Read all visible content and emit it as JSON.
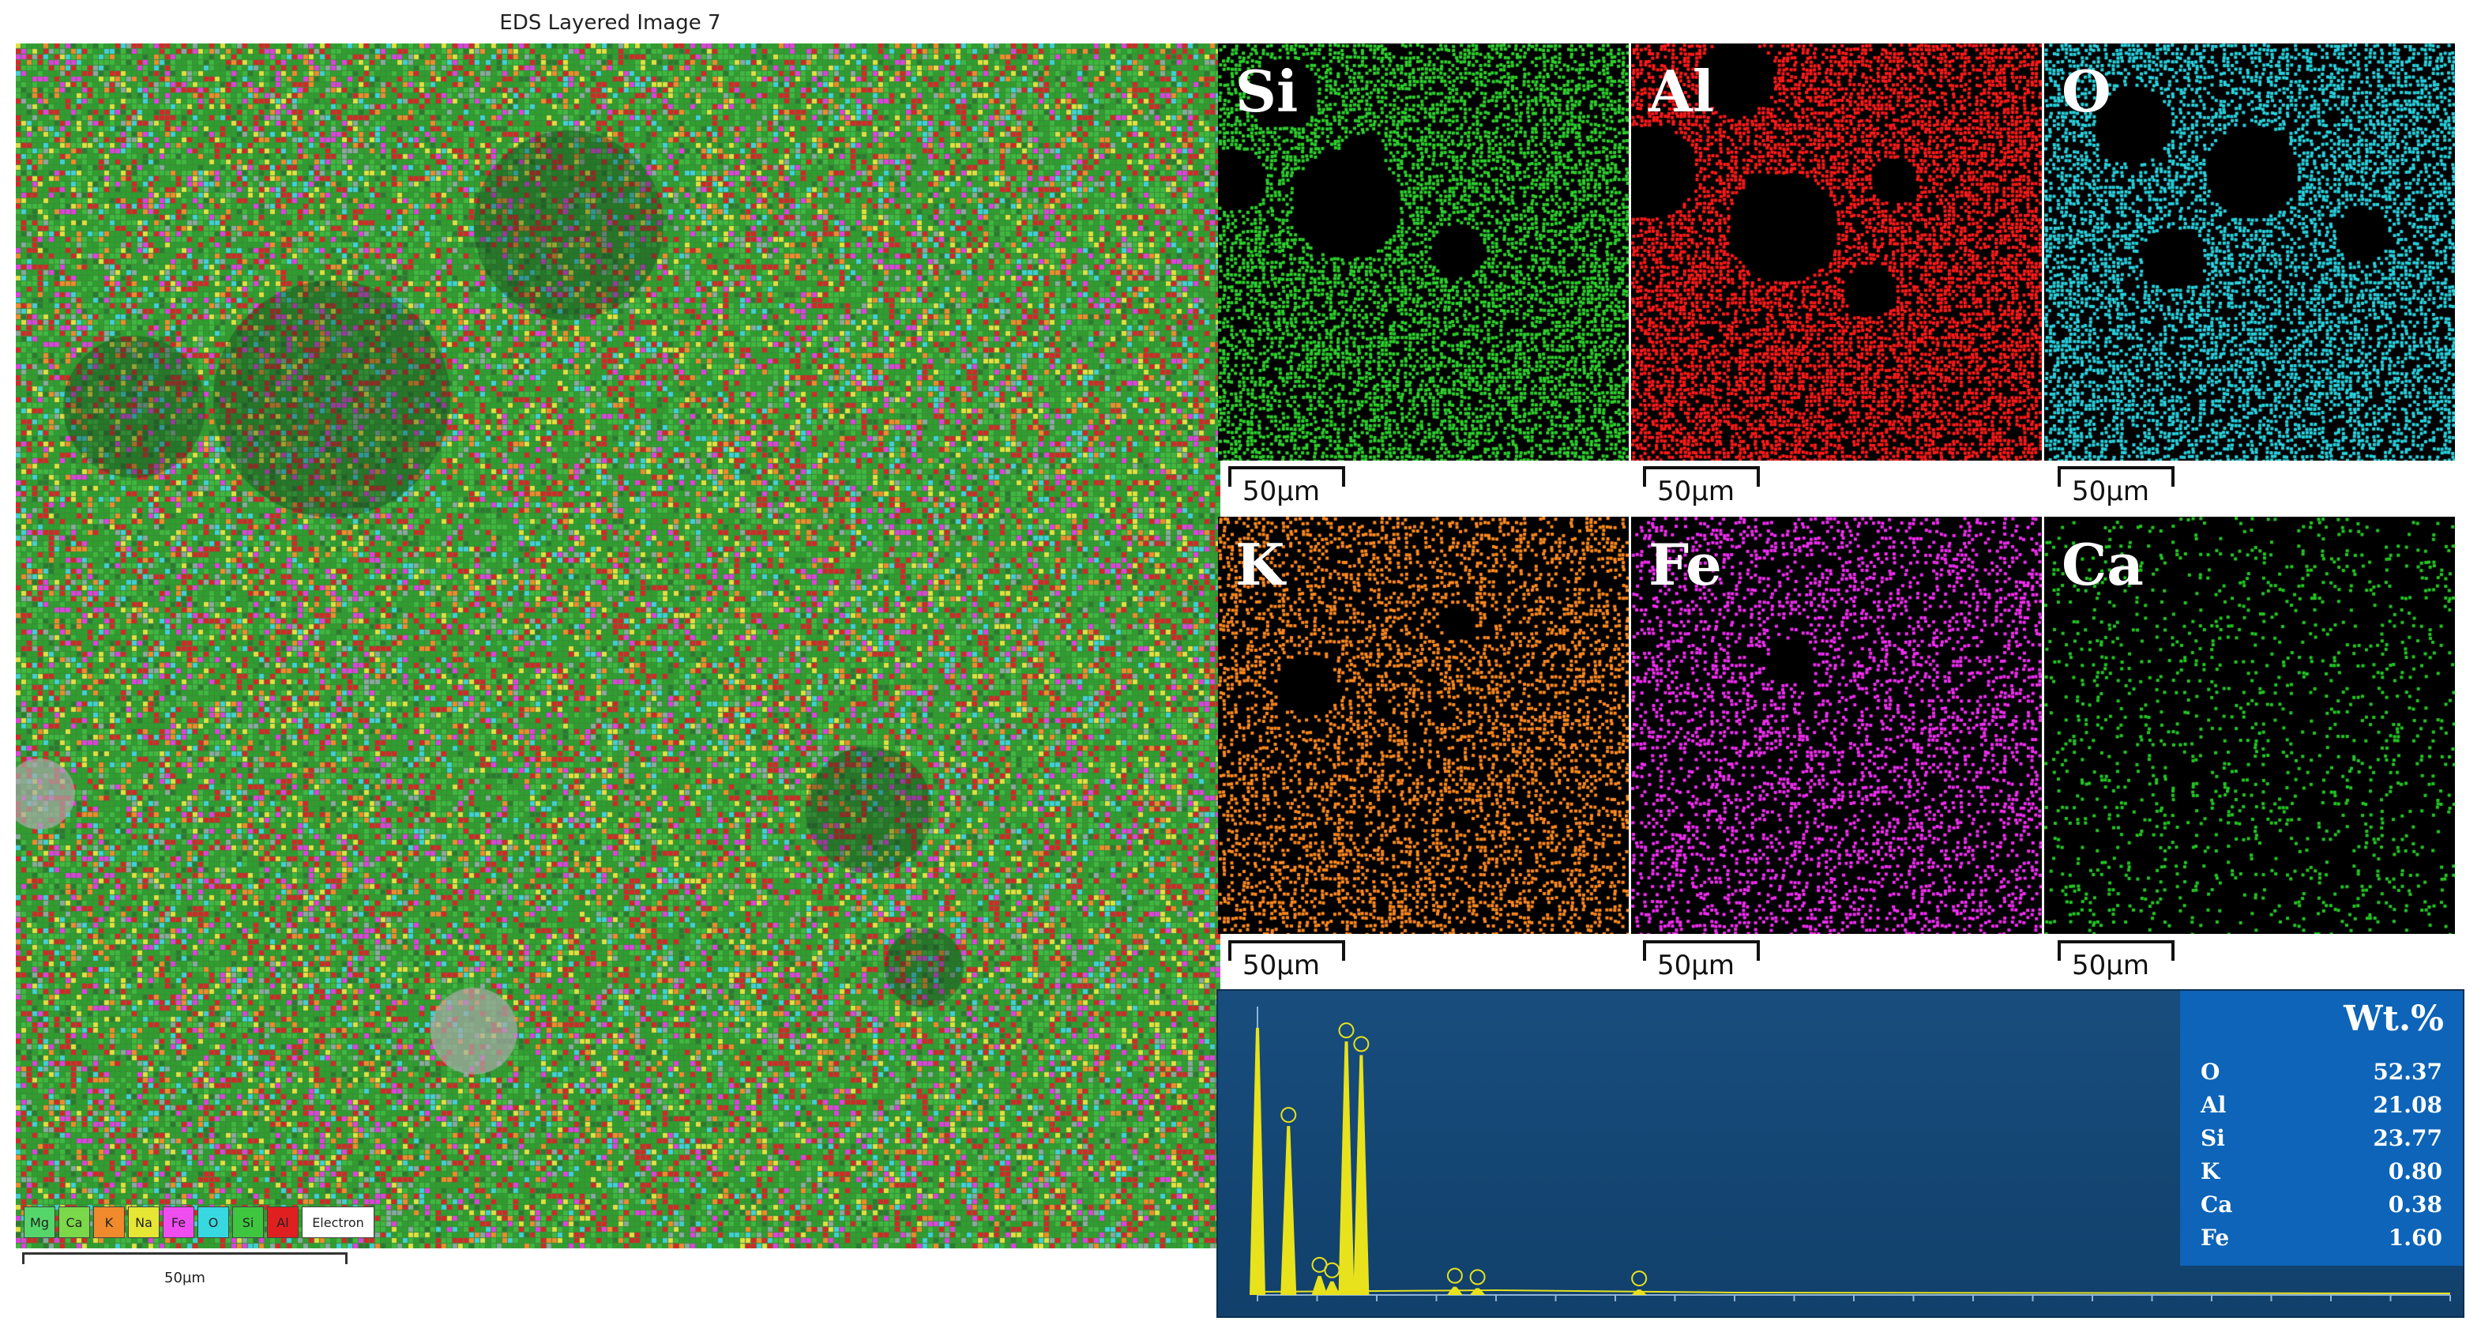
{
  "layered_image": {
    "title": "EDS Layered Image 7",
    "scale_label": "50µm",
    "legend": [
      {
        "label": "Mg",
        "color": "#55d66b"
      },
      {
        "label": "Ca",
        "color": "#7bd84a"
      },
      {
        "label": "K",
        "color": "#f08a2c"
      },
      {
        "label": "Na",
        "color": "#e6e635"
      },
      {
        "label": "Fe",
        "color": "#f04df0"
      },
      {
        "label": "O",
        "color": "#38d8e0"
      },
      {
        "label": "Si",
        "color": "#3fc63f"
      },
      {
        "label": "Al",
        "color": "#e02020"
      },
      {
        "label": "Electron",
        "color": "#ffffff"
      }
    ]
  },
  "element_maps": [
    {
      "label": "Si",
      "color": "#2ed12e",
      "scale_label": "50µm"
    },
    {
      "label": "Al",
      "color": "#ff1a1a",
      "scale_label": "50µm"
    },
    {
      "label": "O",
      "color": "#29d3df",
      "scale_label": "50µm"
    },
    {
      "label": "K",
      "color": "#ff8a1f",
      "scale_label": "50µm"
    },
    {
      "label": "Fe",
      "color": "#f22ef2",
      "scale_label": "50µm"
    },
    {
      "label": "Ca",
      "color": "#23c823",
      "scale_label": "50µm"
    }
  ],
  "composition": {
    "title": "Wt.%",
    "rows": [
      {
        "element": "O",
        "value": "52.37"
      },
      {
        "element": "Al",
        "value": "21.08"
      },
      {
        "element": "Si",
        "value": "23.77"
      },
      {
        "element": "K",
        "value": "0.80"
      },
      {
        "element": "Ca",
        "value": "0.38"
      },
      {
        "element": "Fe",
        "value": "1.60"
      }
    ]
  },
  "spectrum": {
    "peaks": [
      {
        "kev": 0.0,
        "rel": 0.98
      },
      {
        "kev": 0.52,
        "rel": 0.62
      },
      {
        "kev": 1.04,
        "rel": 0.07
      },
      {
        "kev": 1.25,
        "rel": 0.05
      },
      {
        "kev": 1.49,
        "rel": 0.93
      },
      {
        "kev": 1.74,
        "rel": 0.88
      },
      {
        "kev": 3.31,
        "rel": 0.03
      },
      {
        "kev": 3.69,
        "rel": 0.025
      },
      {
        "kev": 6.4,
        "rel": 0.02
      }
    ],
    "x_max_kev": 20
  }
}
